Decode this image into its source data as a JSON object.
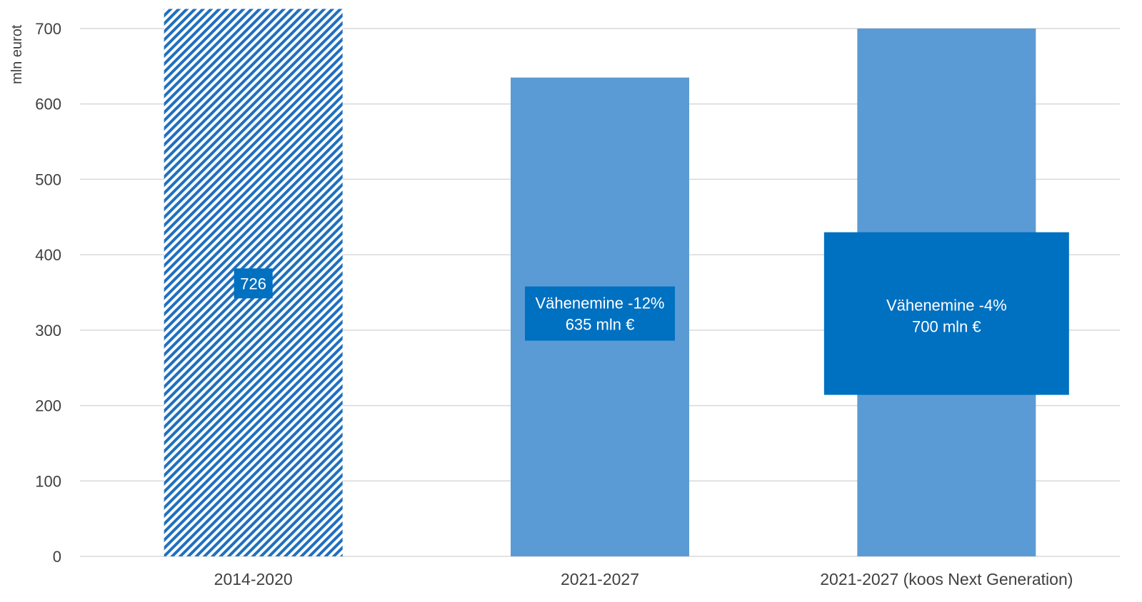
{
  "chart_data": {
    "type": "bar",
    "ylabel": "mln eurot",
    "ylim": [
      0,
      700
    ],
    "yticks": [
      0,
      100,
      200,
      300,
      400,
      500,
      600,
      700
    ],
    "grid": true,
    "categories": [
      "2014-2020",
      "2021-2027",
      "2021-2027 (koos Next Generation)"
    ],
    "values": [
      726,
      635,
      700
    ],
    "fill_styles": [
      "hatched",
      "solid",
      "solid"
    ],
    "data_labels": [
      [
        "726"
      ],
      [
        "Vähenemine -12%",
        "635 mln €"
      ],
      [
        "Vähenemine -4%",
        "700 mln €"
      ]
    ],
    "colors": {
      "bar": "#5b9bd5",
      "hatch": "#1f6fbf",
      "label_box": "#0070c0",
      "grid": "#d9d9d9",
      "text": "#404040"
    }
  }
}
